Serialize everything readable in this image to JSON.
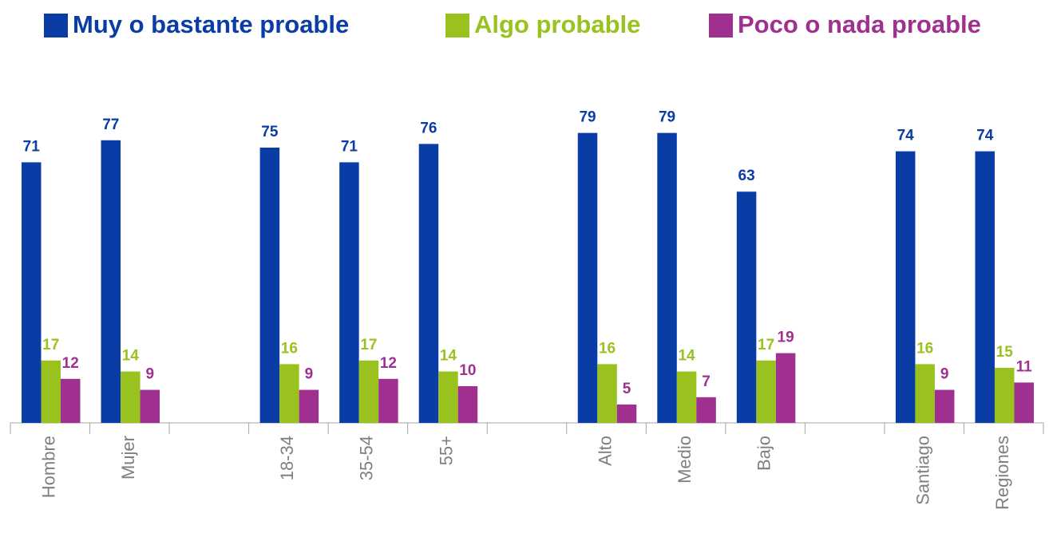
{
  "chart_data": {
    "type": "bar",
    "categories": [
      "Hombre",
      "Mujer",
      null,
      "18-34",
      "35-54",
      "55+",
      null,
      "Alto",
      "Medio",
      "Bajo",
      null,
      "Santiago",
      "Regiones"
    ],
    "series": [
      {
        "name": "Muy o bastante proable",
        "color": "#0a3ca5",
        "values": [
          71,
          77,
          null,
          75,
          71,
          76,
          null,
          79,
          79,
          63,
          null,
          74,
          74
        ]
      },
      {
        "name": "Algo probable",
        "color": "#99c21f",
        "values": [
          17,
          14,
          null,
          16,
          17,
          14,
          null,
          16,
          14,
          17,
          null,
          16,
          15
        ]
      },
      {
        "name": "Poco o nada proable",
        "color": "#a0308f",
        "values": [
          12,
          9,
          null,
          9,
          12,
          10,
          null,
          5,
          7,
          19,
          null,
          9,
          11
        ]
      }
    ],
    "legend": "top"
  }
}
